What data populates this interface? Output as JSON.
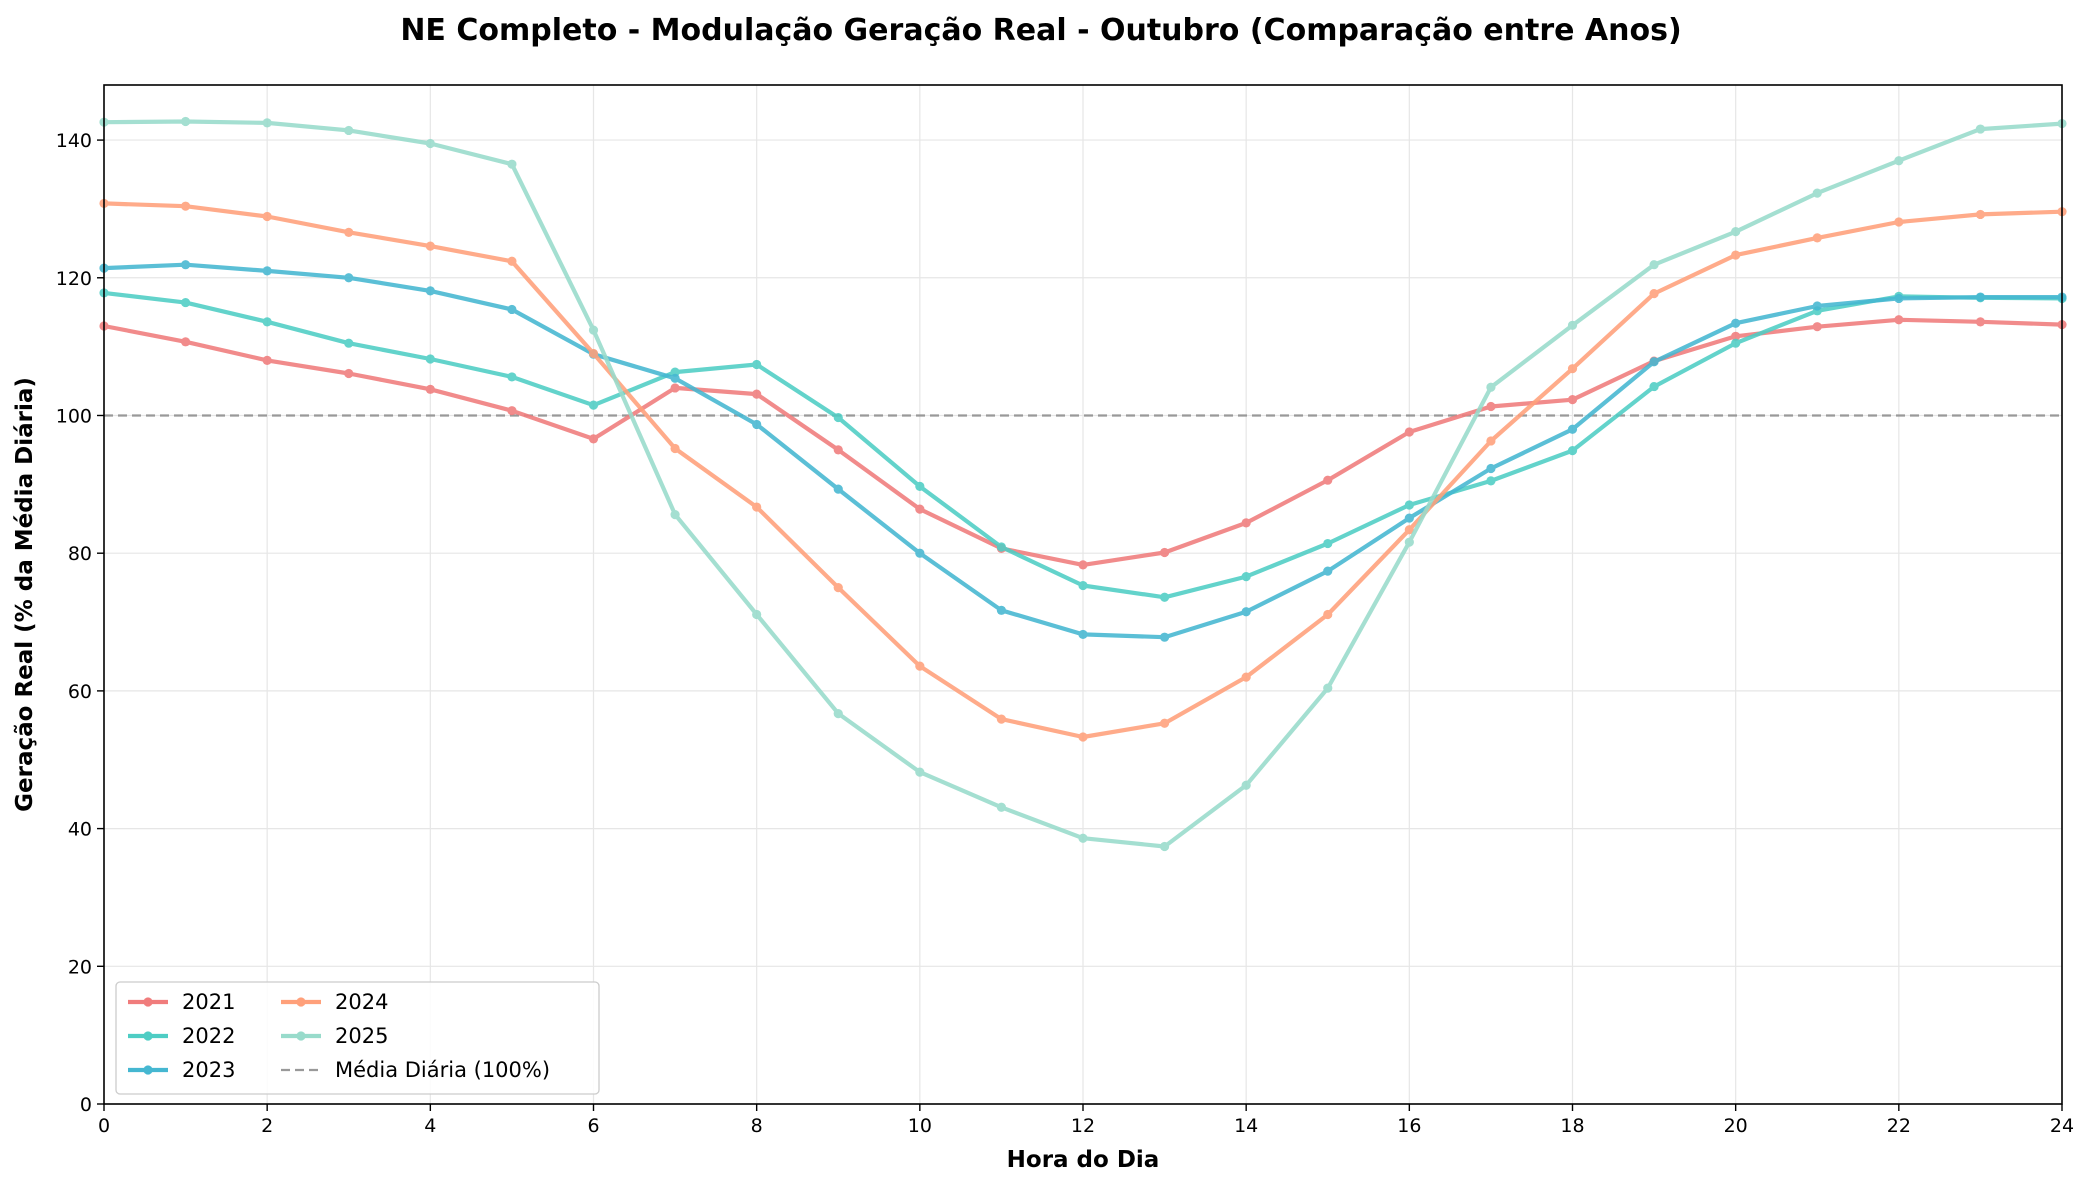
{
  "chart_data": {
    "type": "line",
    "title": "NE Completo - Modulação Geração Real - Outubro (Comparação entre Anos)",
    "xlabel": "Hora do Dia",
    "ylabel": "Geração Real (% da Média Diária)",
    "xlim": [
      0,
      24
    ],
    "ylim": [
      0,
      148
    ],
    "xticks": [
      "0",
      "2",
      "4",
      "6",
      "8",
      "10",
      "12",
      "14",
      "16",
      "18",
      "20",
      "22",
      "24"
    ],
    "yticks": [
      "0",
      "20",
      "40",
      "60",
      "80",
      "100",
      "120",
      "140"
    ],
    "grid": true,
    "legend_position": "lower-left",
    "x": [
      0,
      1,
      2,
      3,
      4,
      5,
      6,
      7,
      8,
      9,
      10,
      11,
      12,
      13,
      14,
      15,
      16,
      17,
      18,
      19,
      20,
      21,
      22,
      23,
      24
    ],
    "series": [
      {
        "name": "2021",
        "color": "#f07c7c",
        "values": [
          113.0,
          110.7,
          108.0,
          106.1,
          103.8,
          100.7,
          96.6,
          104.0,
          103.1,
          95.0,
          86.4,
          80.7,
          78.3,
          80.1,
          84.4,
          90.6,
          97.6,
          101.3,
          102.3,
          107.9,
          111.5,
          112.9,
          113.9,
          113.6,
          113.2
        ]
      },
      {
        "name": "2022",
        "color": "#4ecdc4",
        "values": [
          117.8,
          116.4,
          113.6,
          110.5,
          108.2,
          105.6,
          101.5,
          106.3,
          107.4,
          99.7,
          89.7,
          80.9,
          75.3,
          73.6,
          76.6,
          81.4,
          87.0,
          90.5,
          94.9,
          104.2,
          110.5,
          115.2,
          117.3,
          117.1,
          117.0
        ]
      },
      {
        "name": "2023",
        "color": "#45b7d1",
        "values": [
          121.4,
          121.9,
          121.0,
          120.0,
          118.1,
          115.4,
          108.9,
          105.4,
          98.7,
          89.3,
          80.0,
          71.7,
          68.2,
          67.8,
          71.5,
          77.4,
          85.1,
          92.3,
          98.0,
          107.8,
          113.4,
          115.9,
          117.0,
          117.2,
          117.2
        ]
      },
      {
        "name": "2024",
        "color": "#ffa07a",
        "values": [
          130.8,
          130.4,
          128.9,
          126.6,
          124.6,
          122.4,
          109.0,
          95.2,
          86.7,
          75.0,
          63.6,
          55.9,
          53.3,
          55.3,
          62.0,
          71.1,
          83.4,
          96.3,
          106.8,
          117.7,
          123.3,
          125.8,
          128.1,
          129.2,
          129.6
        ]
      },
      {
        "name": "2025",
        "color": "#98dbcb",
        "values": [
          142.6,
          142.7,
          142.5,
          141.4,
          139.5,
          136.5,
          112.4,
          85.6,
          71.1,
          56.7,
          48.2,
          43.1,
          38.6,
          37.4,
          46.3,
          60.4,
          81.6,
          104.1,
          113.1,
          121.9,
          126.7,
          132.3,
          137.0,
          141.6,
          142.4
        ]
      }
    ],
    "reference_line": {
      "label": "Média Diária (100%)",
      "value": 100,
      "color": "#999999"
    }
  }
}
